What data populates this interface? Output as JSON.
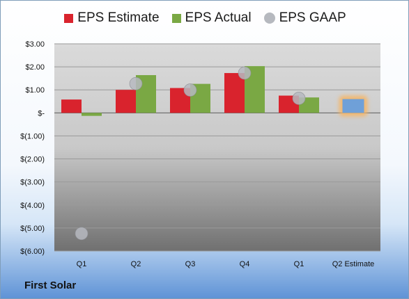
{
  "company": "First Solar",
  "chart_data": {
    "type": "bar",
    "categories": [
      "Q1",
      "Q2",
      "Q3",
      "Q4",
      "Q1",
      "Q2 Estimate"
    ],
    "series": [
      {
        "name": "EPS Estimate",
        "kind": "bar",
        "color": "#d9232d",
        "values": [
          0.58,
          1.0,
          1.08,
          1.73,
          0.75,
          null
        ]
      },
      {
        "name": "EPS Actual",
        "kind": "bar",
        "color": "#7aa844",
        "values": [
          -0.13,
          1.64,
          1.26,
          2.03,
          0.67,
          null
        ]
      },
      {
        "name": "EPS GAAP",
        "kind": "marker",
        "color": "#b6b9bf",
        "values": [
          -5.24,
          1.27,
          0.99,
          1.73,
          0.63,
          null
        ]
      }
    ],
    "highlight": {
      "category_index": 5,
      "value": 0.6,
      "color": "#6fa0d8",
      "glow": "#f7b461"
    },
    "yticks": [
      3,
      2,
      1,
      0,
      -1,
      -2,
      -3,
      -4,
      -5,
      -6
    ],
    "ytick_labels": [
      "$3.00",
      "$2.00",
      "$1.00",
      "$-",
      "$(1.00)",
      "$(2.00)",
      "$(3.00)",
      "$(4.00)",
      "$(5.00)",
      "$(6.00)"
    ],
    "ylim": [
      -6,
      3
    ],
    "grid": true,
    "legend_position": "top"
  }
}
